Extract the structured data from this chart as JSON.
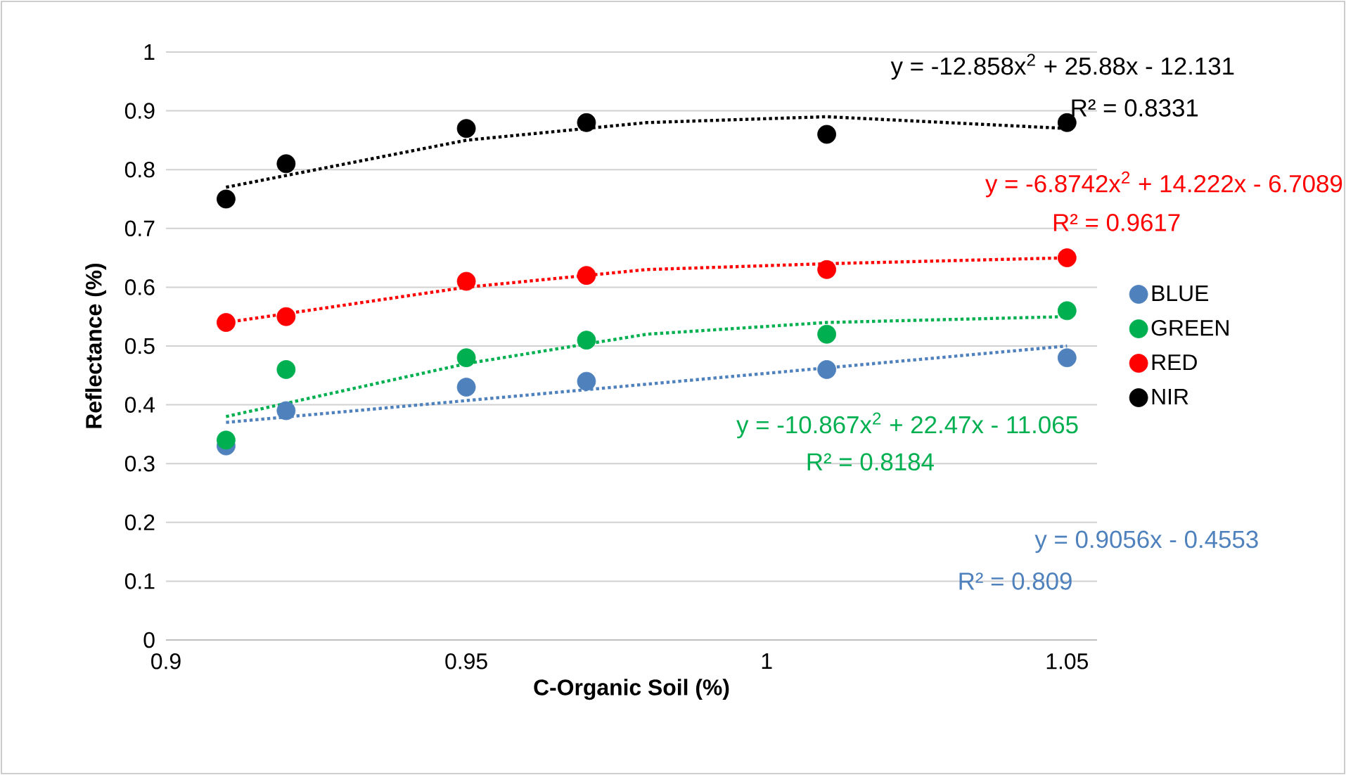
{
  "chart_data": {
    "type": "scatter",
    "xlabel": "C-Organic Soil (%)",
    "ylabel": "Reflectance (%)",
    "xlim": [
      0.9,
      1.055
    ],
    "xticks": [
      0.9,
      0.95,
      1,
      1.05
    ],
    "ylim": [
      0,
      1
    ],
    "yticks": [
      0,
      0.1,
      0.2,
      0.3,
      0.4,
      0.5,
      0.6,
      0.7,
      0.8,
      0.9,
      1
    ],
    "grid": "y",
    "legend": "right",
    "marker": "circle",
    "x": [
      0.91,
      0.92,
      0.95,
      0.97,
      1.01,
      1.05
    ],
    "series": [
      {
        "name": "BLUE",
        "color": "#4f81bd",
        "values": [
          0.33,
          0.39,
          0.43,
          0.44,
          0.46,
          0.48
        ]
      },
      {
        "name": "GREEN",
        "color": "#00b050",
        "values": [
          0.34,
          0.46,
          0.48,
          0.51,
          0.52,
          0.56
        ]
      },
      {
        "name": "RED",
        "color": "#ff0000",
        "values": [
          0.54,
          0.55,
          0.61,
          0.62,
          0.63,
          0.65
        ]
      },
      {
        "name": "NIR",
        "color": "#000000",
        "values": [
          0.75,
          0.81,
          0.87,
          0.88,
          0.86,
          0.88
        ]
      },
      {
        "type": "line",
        "line_style": "dotted",
        "marker": "none",
        "color": "#000000",
        "x": [
          0.91,
          0.95,
          0.98,
          1.01,
          1.05
        ],
        "values": [
          0.77,
          0.85,
          0.88,
          0.89,
          0.87
        ]
      },
      {
        "type": "line",
        "line_style": "dotted",
        "marker": "none",
        "color": "#ff0000",
        "x": [
          0.91,
          0.95,
          0.98,
          1.01,
          1.05
        ],
        "values": [
          0.54,
          0.6,
          0.63,
          0.64,
          0.65
        ]
      },
      {
        "type": "line",
        "line_style": "dotted",
        "marker": "none",
        "color": "#00b050",
        "x": [
          0.91,
          0.95,
          0.98,
          1.01,
          1.05
        ],
        "values": [
          0.38,
          0.47,
          0.52,
          0.54,
          0.55
        ]
      },
      {
        "type": "line",
        "line_style": "dotted",
        "marker": "none",
        "color": "#4f81bd",
        "x": [
          0.91,
          1.05
        ],
        "values": [
          0.37,
          0.5
        ]
      }
    ],
    "annotations": [
      "y = -12.858x$^{2}$ + 25.88x - 12.131",
      "R² = 0.8331",
      "y = -6.8742x$^{2}$ + 14.222x - 6.7089",
      "R² = 0.9617",
      "y = -10.867x$^{2}$ + 22.47x - 11.065",
      "R² = 0.8184",
      "y = 0.9056x - 0.4553",
      "R² = 0.809"
    ]
  }
}
